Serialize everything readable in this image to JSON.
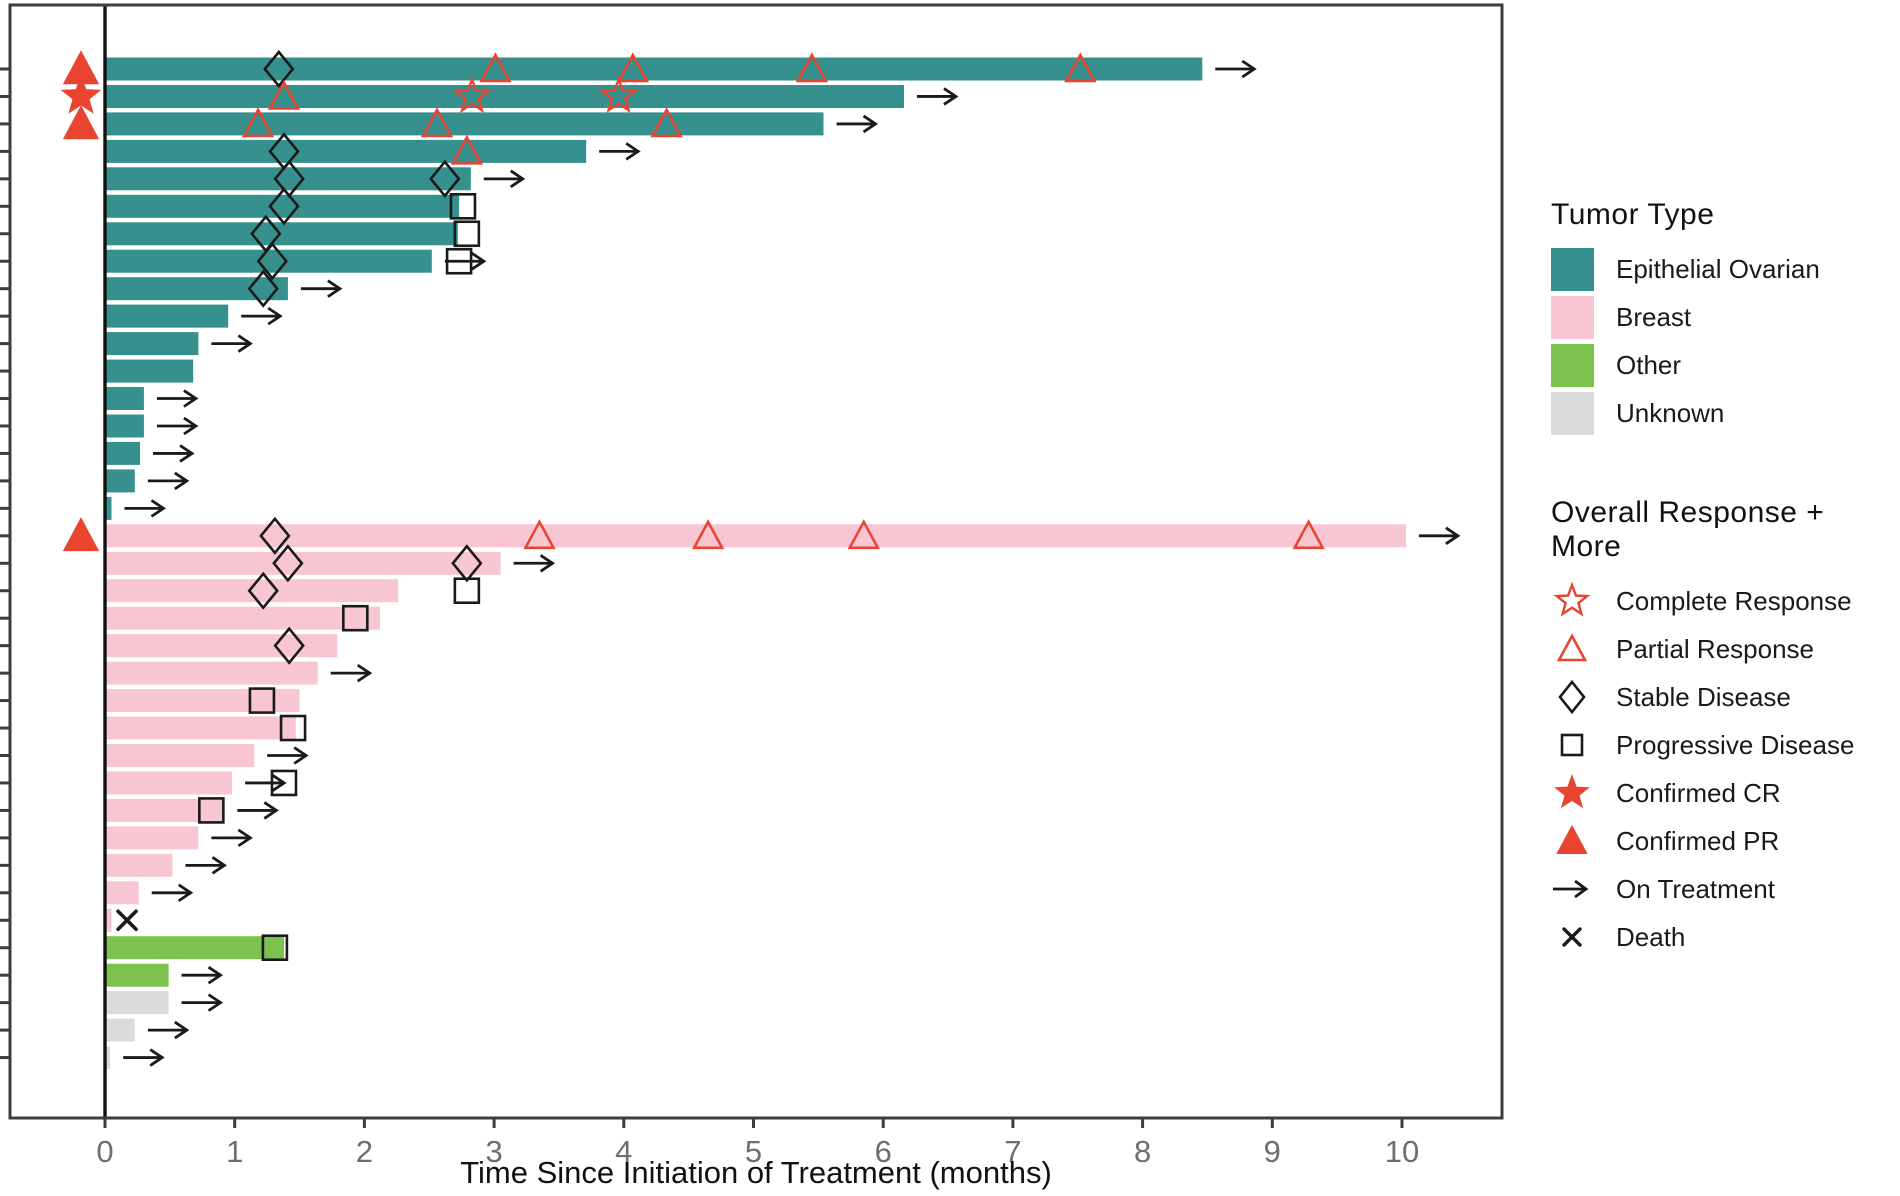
{
  "colors": {
    "teal": "#35908E",
    "pink": "#F8C6D2",
    "green": "#7CC24E",
    "gray": "#DBDBDB",
    "red": "#E8442F",
    "marker_black": "#1A1A1A",
    "axis": "#3D3D3D",
    "tick_label": "#6E6E6E"
  },
  "legend_tumor": {
    "title": "Tumor Type",
    "items": [
      {
        "label": "Epithelial Ovarian",
        "color": "#35908E"
      },
      {
        "label": "Breast",
        "color": "#F8C6D2"
      },
      {
        "label": "Other",
        "color": "#7CC24E"
      },
      {
        "label": "Unknown",
        "color": "#DBDBDB"
      }
    ]
  },
  "legend_response": {
    "title": "Overall Response + More",
    "items": [
      {
        "label": "Complete Response",
        "symbol": "star-open"
      },
      {
        "label": "Partial Response",
        "symbol": "triangle-open"
      },
      {
        "label": "Stable Disease",
        "symbol": "diamond-open"
      },
      {
        "label": "Progressive Disease",
        "symbol": "square-open"
      },
      {
        "label": "Confirmed CR",
        "symbol": "star-filled"
      },
      {
        "label": "Confirmed PR",
        "symbol": "triangle-filled"
      },
      {
        "label": "On Treatment",
        "symbol": "arrow-right"
      },
      {
        "label": "Death",
        "symbol": "x-cross"
      }
    ]
  },
  "chart_data": {
    "type": "bar",
    "subtype": "swimmer",
    "orientation": "horizontal",
    "xlabel": "Time Since Initiation of Treatment (months)",
    "xlim": [
      0,
      10.75
    ],
    "x_ticks": [
      0,
      1,
      2,
      3,
      4,
      5,
      6,
      7,
      8,
      9,
      10
    ],
    "grid": false,
    "legend_position": "right",
    "marker_codes": {
      "CR": "Complete Response",
      "PR": "Partial Response",
      "SD": "Stable Disease",
      "PD": "Progressive Disease",
      "X": "Death",
      "cCR": "Confirmed CR",
      "cPR": "Confirmed PR"
    },
    "rows": [
      {
        "t": "Epithelial Ovarian",
        "len": 8.46,
        "badge": "cPR",
        "arrow": true,
        "mk": [
          [
            "SD",
            1.34
          ],
          [
            "PR",
            3.01
          ],
          [
            "PR",
            4.07
          ],
          [
            "PR",
            5.45
          ],
          [
            "PR",
            7.52
          ]
        ]
      },
      {
        "t": "Epithelial Ovarian",
        "len": 6.16,
        "badge": "cCR",
        "arrow": true,
        "mk": [
          [
            "PR",
            1.38
          ],
          [
            "CR",
            2.83
          ],
          [
            "CR",
            3.96
          ]
        ]
      },
      {
        "t": "Epithelial Ovarian",
        "len": 5.54,
        "badge": "cPR",
        "arrow": true,
        "mk": [
          [
            "PR",
            1.18
          ],
          [
            "PR",
            2.56
          ],
          [
            "PR",
            4.33
          ]
        ]
      },
      {
        "t": "Epithelial Ovarian",
        "len": 3.71,
        "arrow": true,
        "mk": [
          [
            "SD",
            1.38
          ],
          [
            "PR",
            2.79
          ]
        ]
      },
      {
        "t": "Epithelial Ovarian",
        "len": 2.82,
        "arrow": true,
        "mk": [
          [
            "SD",
            1.42
          ],
          [
            "SD",
            2.62
          ]
        ]
      },
      {
        "t": "Epithelial Ovarian",
        "len": 2.73,
        "arrow": false,
        "mk": [
          [
            "SD",
            1.38
          ],
          [
            "PD",
            2.76
          ]
        ]
      },
      {
        "t": "Epithelial Ovarian",
        "len": 2.72,
        "arrow": false,
        "mk": [
          [
            "SD",
            1.24
          ],
          [
            "PD",
            2.79
          ]
        ]
      },
      {
        "t": "Epithelial Ovarian",
        "len": 2.52,
        "arrow": true,
        "mk": [
          [
            "SD",
            1.29
          ],
          [
            "PD",
            2.73
          ]
        ]
      },
      {
        "t": "Epithelial Ovarian",
        "len": 1.41,
        "arrow": true,
        "mk": [
          [
            "SD",
            1.22
          ]
        ]
      },
      {
        "t": "Epithelial Ovarian",
        "len": 0.95,
        "arrow": true,
        "mk": []
      },
      {
        "t": "Epithelial Ovarian",
        "len": 0.72,
        "arrow": true,
        "mk": []
      },
      {
        "t": "Epithelial Ovarian",
        "len": 0.68,
        "arrow": false,
        "mk": []
      },
      {
        "t": "Epithelial Ovarian",
        "len": 0.3,
        "arrow": true,
        "mk": []
      },
      {
        "t": "Epithelial Ovarian",
        "len": 0.3,
        "arrow": true,
        "mk": []
      },
      {
        "t": "Epithelial Ovarian",
        "len": 0.27,
        "arrow": true,
        "mk": []
      },
      {
        "t": "Epithelial Ovarian",
        "len": 0.23,
        "arrow": true,
        "mk": []
      },
      {
        "t": "Epithelial Ovarian",
        "len": 0.05,
        "arrow": true,
        "mk": []
      },
      {
        "t": "Breast",
        "len": 10.03,
        "badge": "cPR",
        "arrow": true,
        "mk": [
          [
            "SD",
            1.31
          ],
          [
            "PR",
            3.35
          ],
          [
            "PR",
            4.65
          ],
          [
            "PR",
            5.85
          ],
          [
            "PR",
            9.28
          ]
        ]
      },
      {
        "t": "Breast",
        "len": 3.05,
        "arrow": true,
        "mk": [
          [
            "SD",
            1.41
          ],
          [
            "SD",
            2.79
          ]
        ]
      },
      {
        "t": "Breast",
        "len": 2.26,
        "arrow": false,
        "mk": [
          [
            "SD",
            1.22
          ],
          [
            "PD",
            2.79
          ]
        ]
      },
      {
        "t": "Breast",
        "len": 2.12,
        "arrow": false,
        "mk": [
          [
            "PD",
            1.93
          ]
        ]
      },
      {
        "t": "Breast",
        "len": 1.79,
        "arrow": false,
        "mk": [
          [
            "SD",
            1.42
          ]
        ]
      },
      {
        "t": "Breast",
        "len": 1.64,
        "arrow": true,
        "mk": []
      },
      {
        "t": "Breast",
        "len": 1.5,
        "arrow": false,
        "mk": [
          [
            "PD",
            1.21
          ]
        ]
      },
      {
        "t": "Breast",
        "len": 1.47,
        "arrow": false,
        "mk": [
          [
            "PD",
            1.45
          ]
        ]
      },
      {
        "t": "Breast",
        "len": 1.15,
        "arrow": true,
        "mk": []
      },
      {
        "t": "Breast",
        "len": 0.98,
        "arrow": true,
        "mk": [
          [
            "PD",
            1.38
          ]
        ]
      },
      {
        "t": "Breast",
        "len": 0.92,
        "arrow": true,
        "mk": [
          [
            "PD",
            0.82
          ]
        ]
      },
      {
        "t": "Breast",
        "len": 0.72,
        "arrow": true,
        "mk": []
      },
      {
        "t": "Breast",
        "len": 0.52,
        "arrow": true,
        "mk": []
      },
      {
        "t": "Breast",
        "len": 0.26,
        "arrow": true,
        "mk": []
      },
      {
        "t": "Breast",
        "len": 0.05,
        "arrow": false,
        "mk": [
          [
            "X",
            0.17
          ]
        ]
      },
      {
        "t": "Other",
        "len": 1.38,
        "arrow": false,
        "mk": [
          [
            "PD",
            1.31
          ]
        ]
      },
      {
        "t": "Other",
        "len": 0.49,
        "arrow": true,
        "mk": []
      },
      {
        "t": "Unknown",
        "len": 0.49,
        "arrow": true,
        "mk": []
      },
      {
        "t": "Unknown",
        "len": 0.23,
        "arrow": true,
        "mk": []
      },
      {
        "t": "Unknown",
        "len": 0.04,
        "arrow": true,
        "mk": []
      }
    ]
  }
}
